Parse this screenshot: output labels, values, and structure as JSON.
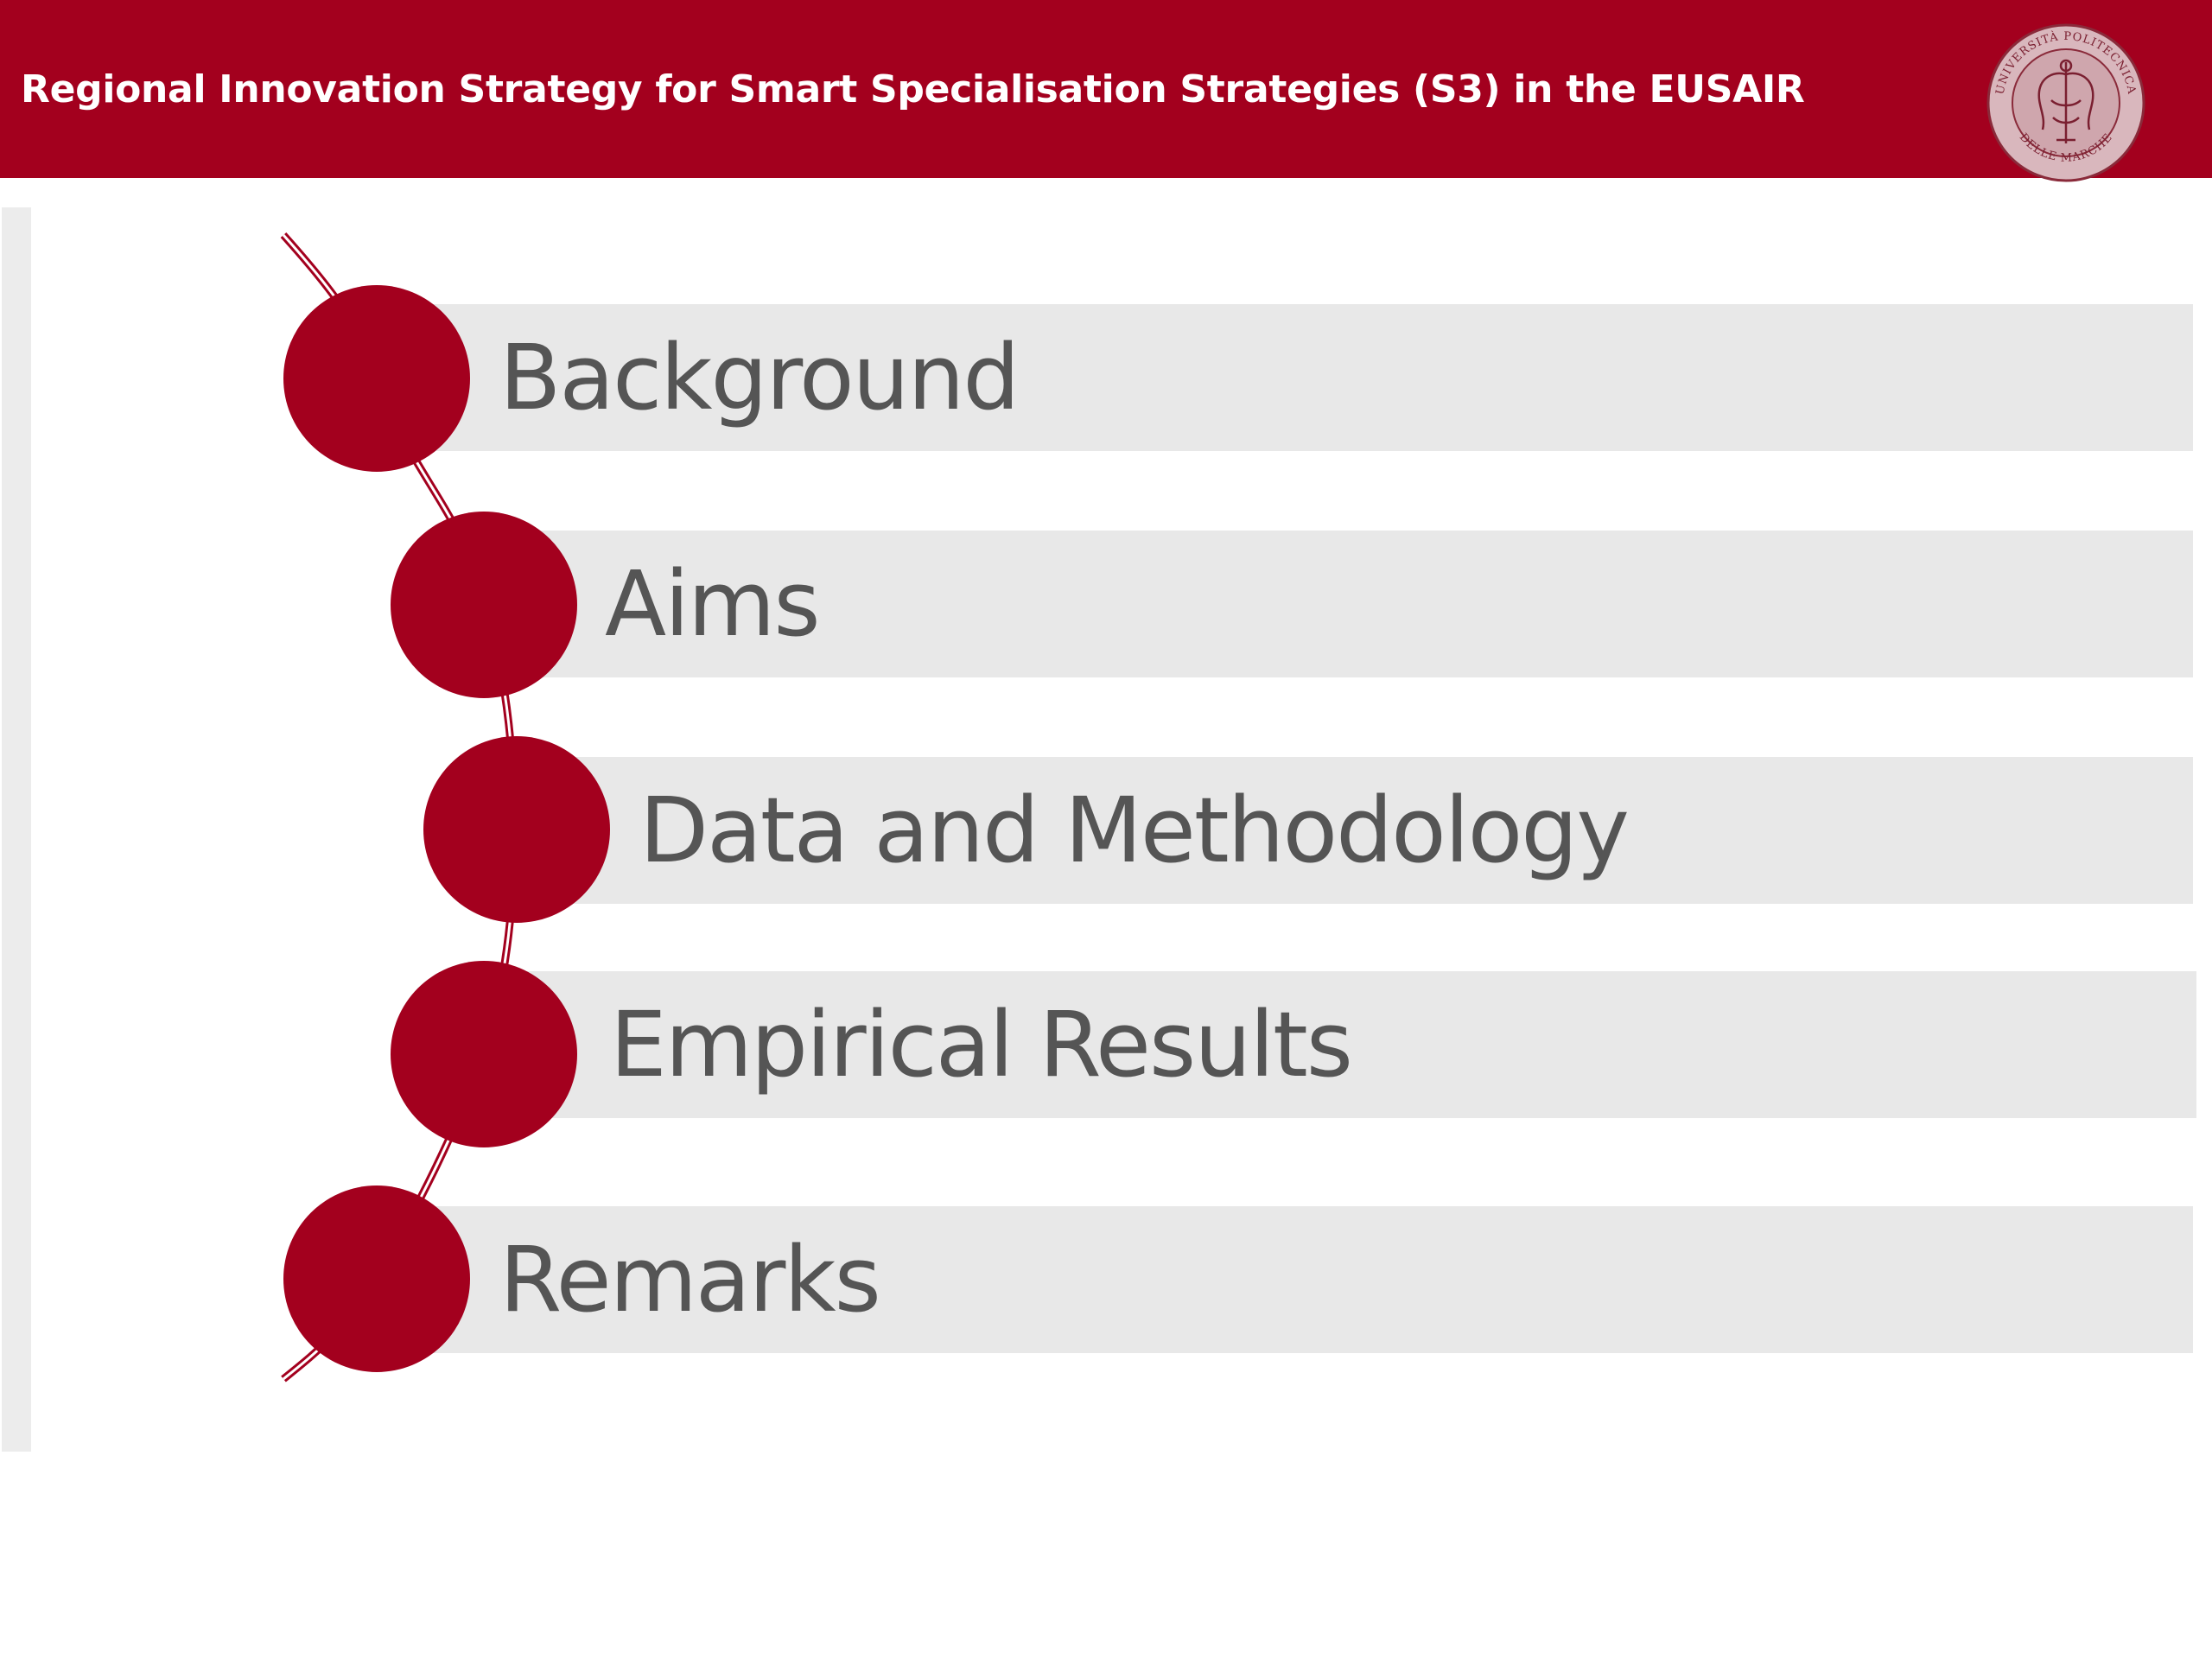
{
  "header": {
    "title": "Regional Innovation Strategy for Smart Specialisation Strategies (S3) in the EUSAIR",
    "logo": {
      "ring_text_top": "UNIVERSITÀ POLITECNICA",
      "ring_text_bottom": "DELLE MARCHE"
    }
  },
  "agenda": {
    "items": [
      {
        "label": "Background"
      },
      {
        "label": "Aims"
      },
      {
        "label": "Data and Methodology"
      },
      {
        "label": "Empirical Results"
      },
      {
        "label": "Remarks"
      }
    ]
  },
  "colors": {
    "accent": "#a3001e",
    "bar": "#e8e8e8",
    "text": "#555555"
  }
}
